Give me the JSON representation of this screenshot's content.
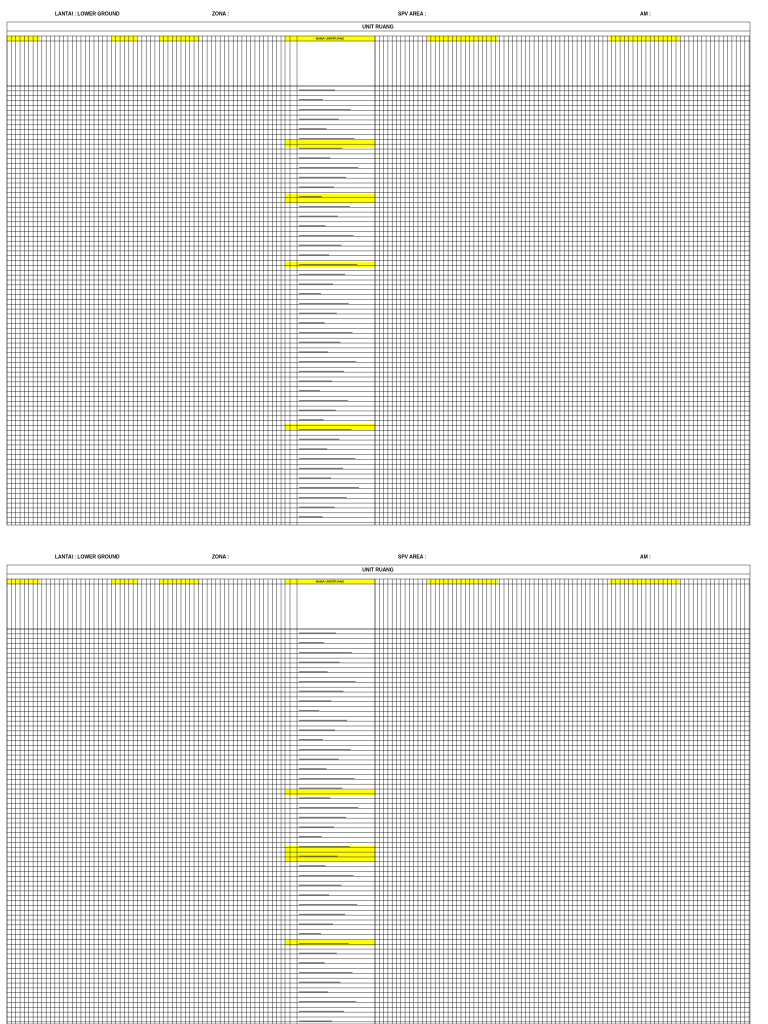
{
  "pages": [
    {
      "header": {
        "floor": "LANTAI : LOWER GROUND",
        "zone": "ZONA :",
        "spv": "SPV AREA :",
        "am": "AM :"
      },
      "table": {
        "title": "UNIT RUANG",
        "name_header": "NAMA UNIT/RUANG"
      }
    },
    {
      "header": {
        "floor": "LANTAI : LOWER GROUND",
        "zone": "ZONA :",
        "spv": "SPV AREA :",
        "am": "AM :"
      },
      "table": {
        "title": "UNIT RUANG",
        "name_header": "NAMA UNIT/RUANG"
      }
    }
  ]
}
